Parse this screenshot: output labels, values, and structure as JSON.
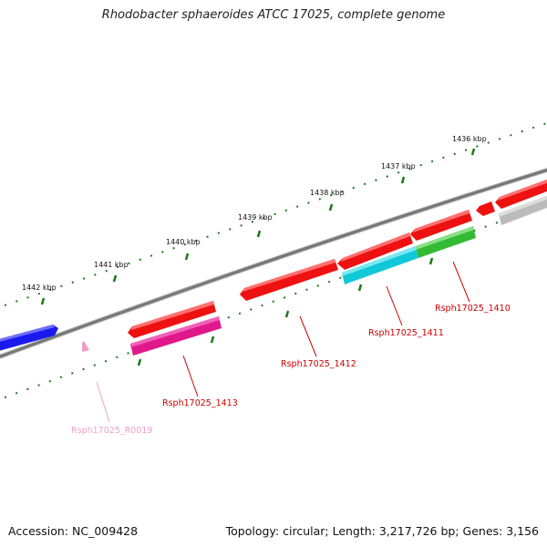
{
  "title": "Rhodobacter sphaeroides ATCC 17025, complete genome",
  "ruler": {
    "ticks": [
      "1436 kbp",
      "1437 kbp",
      "1438 kbp",
      "1439 kbp",
      "1440 kbp",
      "1441 kbp",
      "1442 kbp"
    ]
  },
  "genes": [
    {
      "label": "Rsph17025_1410",
      "color": "#cc0000"
    },
    {
      "label": "Rsph17025_1411",
      "color": "#cc0000"
    },
    {
      "label": "Rsph17025_1412",
      "color": "#cc0000"
    },
    {
      "label": "Rsph17025_1413",
      "color": "#cc0000"
    },
    {
      "label": "Rsph17025_R0019",
      "color": "#f0a0c8"
    }
  ],
  "colors": {
    "backbone": "#777777",
    "tick": "#1a7a1a",
    "red_feature": "#ee1111",
    "blue_feature": "#1a1aee",
    "cyan_feature": "#11c8d8",
    "magenta_feature": "#e0188c",
    "green_feature": "#33bb33",
    "gray_feature": "#bbbbbb",
    "pink_feature": "#f29ac8"
  },
  "footer": {
    "accession": "Accession: NC_009428",
    "summary": "Topology: circular; Length: 3,217,726 bp; Genes: 3,156"
  }
}
